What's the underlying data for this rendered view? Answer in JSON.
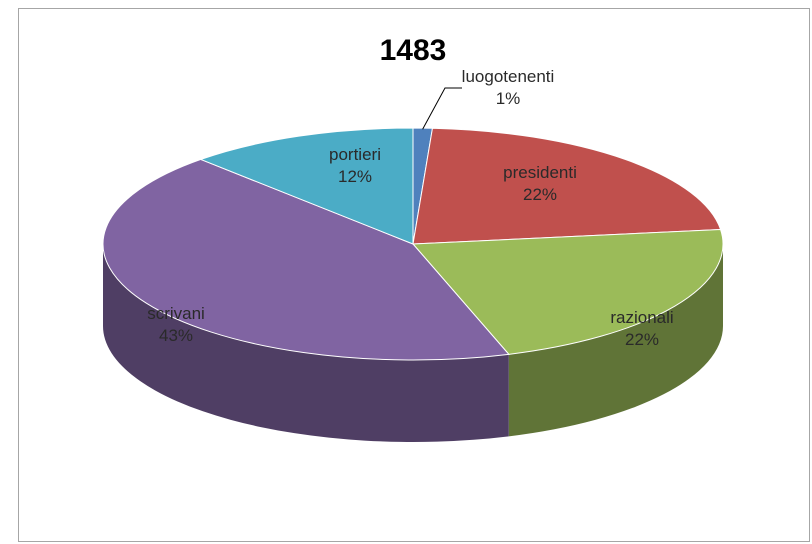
{
  "chart_data": {
    "type": "pie",
    "title": "1483",
    "slices": [
      {
        "label": "luogotenenti",
        "value": 1,
        "value_label": "1%",
        "color": "#4f81bd"
      },
      {
        "label": "presidenti",
        "value": 22,
        "value_label": "22%",
        "color": "#c0504d"
      },
      {
        "label": "razionali",
        "value": 22,
        "value_label": "22%",
        "color": "#9bbb59"
      },
      {
        "label": "scrivani",
        "value": 43,
        "value_label": "43%",
        "color": "#8064a2"
      },
      {
        "label": "portieri",
        "value": 12,
        "value_label": "12%",
        "color": "#4bacc6"
      }
    ],
    "style": "3d",
    "legend": "none"
  }
}
